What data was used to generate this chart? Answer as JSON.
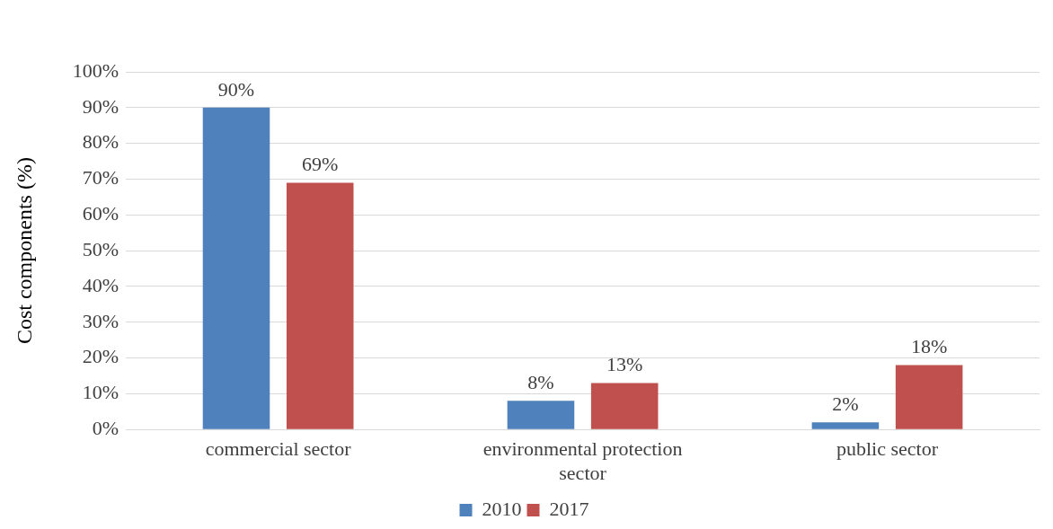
{
  "chart_data": {
    "type": "bar",
    "ylabel": "Cost components (%)",
    "categories": [
      "commercial sector",
      "environmental protection sector",
      "public sector"
    ],
    "series": [
      {
        "name": "2010",
        "color": "#4f81bd",
        "values": [
          90,
          8,
          2
        ],
        "value_labels": [
          "90%",
          "8%",
          "2%"
        ]
      },
      {
        "name": "2017",
        "color": "#c0504d",
        "values": [
          69,
          13,
          18
        ],
        "value_labels": [
          "69%",
          "13%",
          "18%"
        ]
      }
    ],
    "ylim": [
      0,
      100
    ],
    "yticks": [
      {
        "value": 0,
        "label": "0%"
      },
      {
        "value": 10,
        "label": "10%"
      },
      {
        "value": 20,
        "label": "20%"
      },
      {
        "value": 30,
        "label": "30%"
      },
      {
        "value": 40,
        "label": "40%"
      },
      {
        "value": 50,
        "label": "50%"
      },
      {
        "value": 60,
        "label": "60%"
      },
      {
        "value": 70,
        "label": "70%"
      },
      {
        "value": 80,
        "label": "80%"
      },
      {
        "value": 90,
        "label": "90%"
      },
      {
        "value": 100,
        "label": "100%"
      }
    ],
    "grid": "y",
    "legend": "bottom"
  }
}
